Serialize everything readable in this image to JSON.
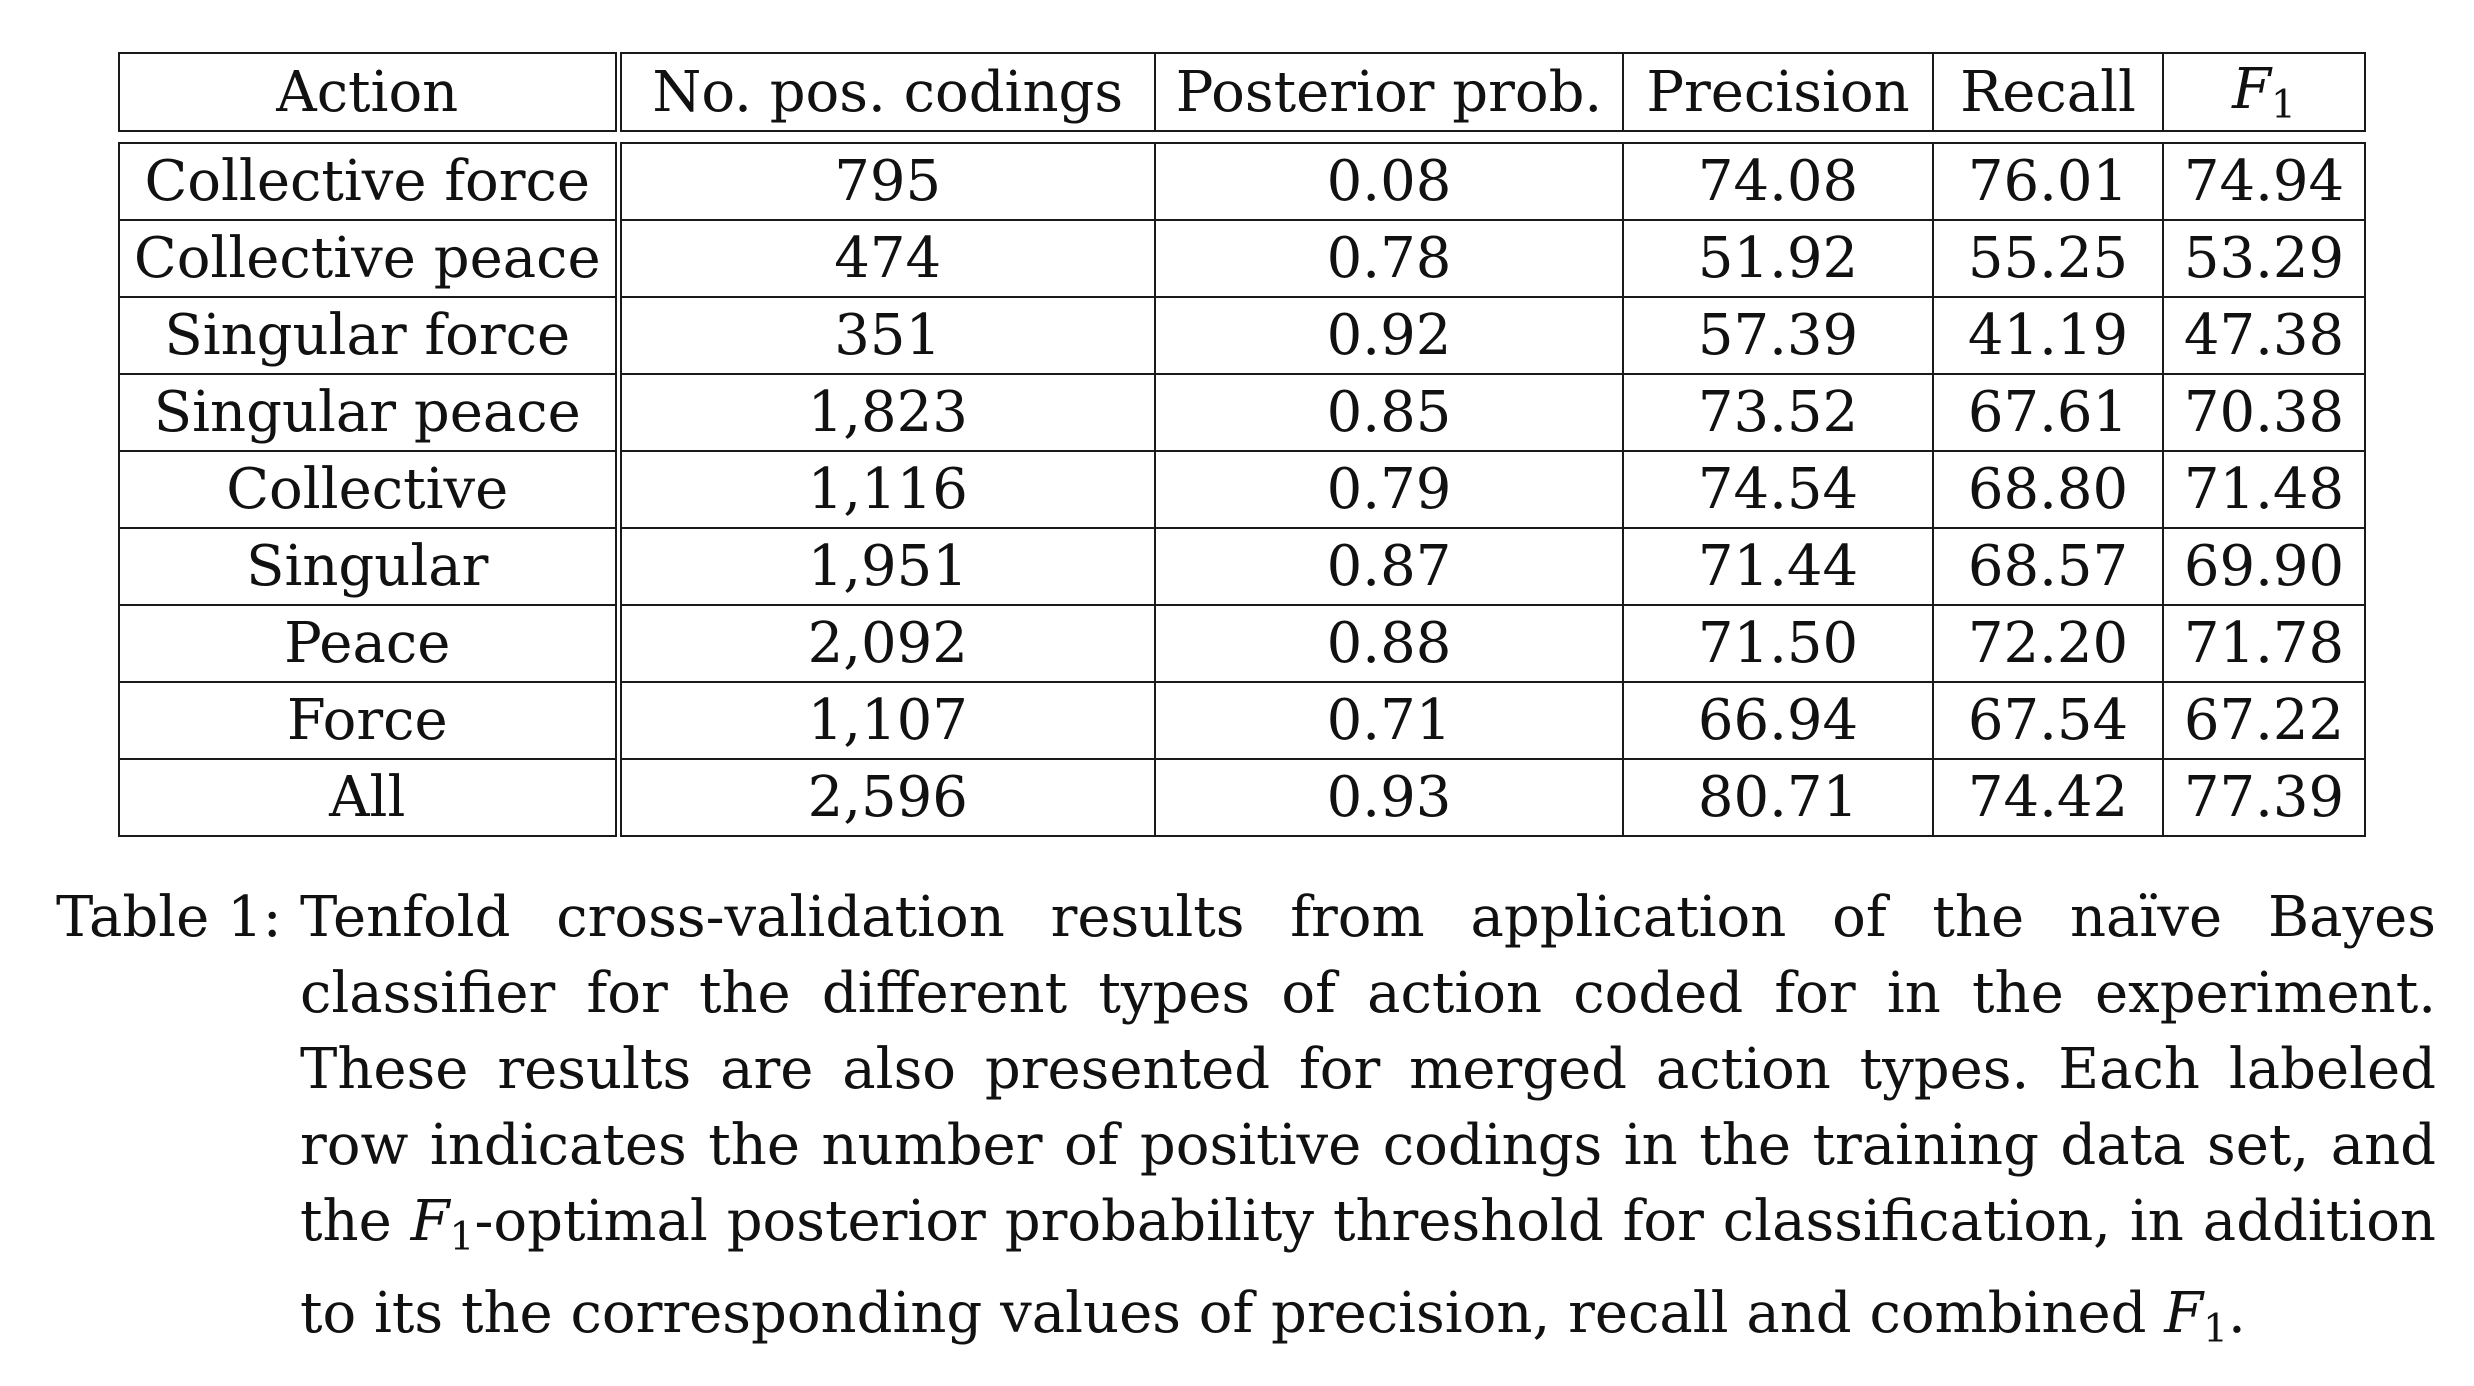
{
  "table": {
    "headers": {
      "action": "Action",
      "no_pos_codings": "No. pos. codings",
      "posterior_prob": "Posterior prob.",
      "precision": "Precision",
      "recall": "Recall",
      "f1_symbol": "F",
      "f1_subscript": "1"
    },
    "rows": [
      {
        "action": "Collective force",
        "codings": "795",
        "posterior": "0.08",
        "precision": "74.08",
        "recall": "76.01",
        "f1": "74.94"
      },
      {
        "action": "Collective peace",
        "codings": "474",
        "posterior": "0.78",
        "precision": "51.92",
        "recall": "55.25",
        "f1": "53.29"
      },
      {
        "action": "Singular force",
        "codings": "351",
        "posterior": "0.92",
        "precision": "57.39",
        "recall": "41.19",
        "f1": "47.38"
      },
      {
        "action": "Singular peace",
        "codings": "1,823",
        "posterior": "0.85",
        "precision": "73.52",
        "recall": "67.61",
        "f1": "70.38"
      },
      {
        "action": "Collective",
        "codings": "1,116",
        "posterior": "0.79",
        "precision": "74.54",
        "recall": "68.80",
        "f1": "71.48"
      },
      {
        "action": "Singular",
        "codings": "1,951",
        "posterior": "0.87",
        "precision": "71.44",
        "recall": "68.57",
        "f1": "69.90"
      },
      {
        "action": "Peace",
        "codings": "2,092",
        "posterior": "0.88",
        "precision": "71.50",
        "recall": "72.20",
        "f1": "71.78"
      },
      {
        "action": "Force",
        "codings": "1,107",
        "posterior": "0.71",
        "precision": "66.94",
        "recall": "67.54",
        "f1": "67.22"
      },
      {
        "action": "All",
        "codings": "2,596",
        "posterior": "0.93",
        "precision": "80.71",
        "recall": "74.42",
        "f1": "77.39"
      }
    ]
  },
  "caption": {
    "label": "Table 1:",
    "text_part1": "Tenfold cross-validation results from application of the naïve Bayes classifier for the different types of action coded for in the experiment. These results are also presented for merged action types. Each labeled row indicates the number of positive codings in the training data set, and the ",
    "f1_symbol": "F",
    "f1_subscript": "1",
    "text_part2": "-optimal posterior probability threshold for classification, in addition to its the corresponding values of precision, recall and combined ",
    "text_part3": "."
  }
}
